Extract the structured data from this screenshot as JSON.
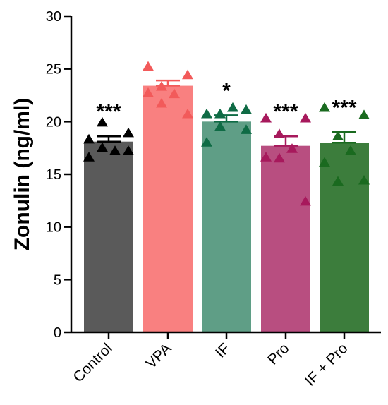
{
  "chart_data": {
    "type": "bar",
    "title": "",
    "xlabel": "",
    "ylabel": "Zonulin (ng/ml)",
    "ylim": [
      0,
      30
    ],
    "yticks": [
      0,
      5,
      10,
      15,
      20,
      25,
      30
    ],
    "categories": [
      "Control",
      "VPA",
      "IF",
      "Pro",
      "IF + Pro"
    ],
    "values": [
      18.1,
      23.4,
      20.0,
      17.7,
      18.0
    ],
    "sem": [
      0.5,
      0.5,
      0.6,
      0.9,
      1.0
    ],
    "significance": [
      "***",
      "",
      "*",
      "***",
      "***"
    ],
    "colors": [
      "#5a5a5a",
      "#f98080",
      "#5f9e86",
      "#b84e80",
      "#3c7d3c"
    ],
    "point_colors": [
      "#000000",
      "#f25a5a",
      "#0f6b45",
      "#a7195c",
      "#1a6a1f"
    ],
    "points": [
      [
        16.6,
        17.2,
        17.5,
        17.2,
        18.3,
        19.9,
        18.9
      ],
      [
        25.2,
        24.4,
        23.3,
        22.6,
        22.7,
        21.7,
        20.7
      ],
      [
        20.7,
        21.1,
        20.7,
        21.3,
        18.0,
        19.5,
        19.2
      ],
      [
        20.3,
        20.3,
        18.8,
        17.4,
        16.6,
        16.5,
        12.4
      ],
      [
        21.3,
        20.6,
        18.6,
        17.2,
        16.1,
        14.3,
        14.4
      ]
    ]
  }
}
